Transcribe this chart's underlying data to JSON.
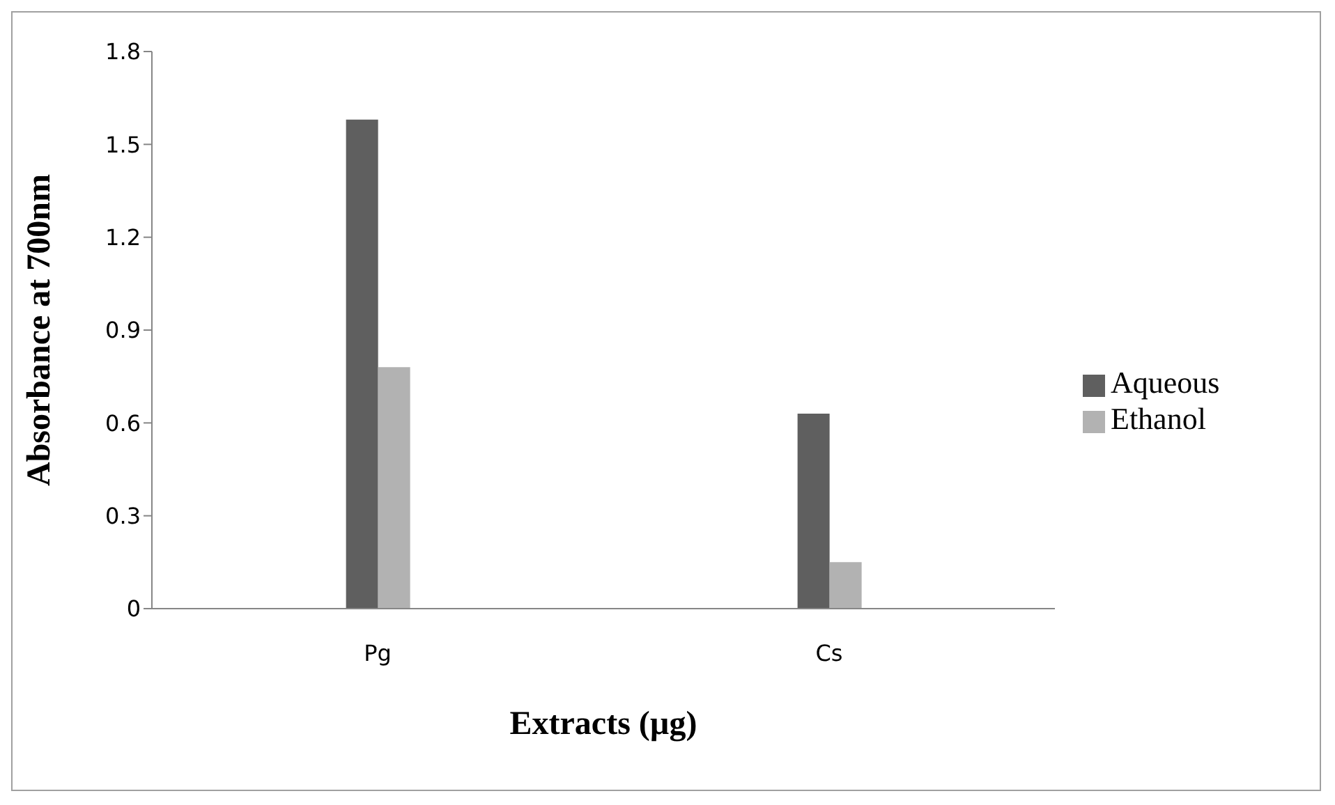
{
  "chart_data": {
    "type": "bar",
    "xlabel": "Extracts (µg)",
    "ylabel": "Absorbance  at 700nm",
    "categories": [
      "Pg",
      "Cs"
    ],
    "series": [
      {
        "name": "Aqueous",
        "color": "#5f5f5f",
        "values": [
          1.58,
          0.63
        ]
      },
      {
        "name": "Ethanol",
        "color": "#b2b2b2",
        "values": [
          0.78,
          0.15
        ]
      }
    ],
    "ylim": [
      0,
      1.8
    ],
    "yticks": [
      0,
      0.3,
      0.6,
      0.9,
      1.2,
      1.5,
      1.8
    ],
    "grid": false,
    "legend": "right"
  }
}
